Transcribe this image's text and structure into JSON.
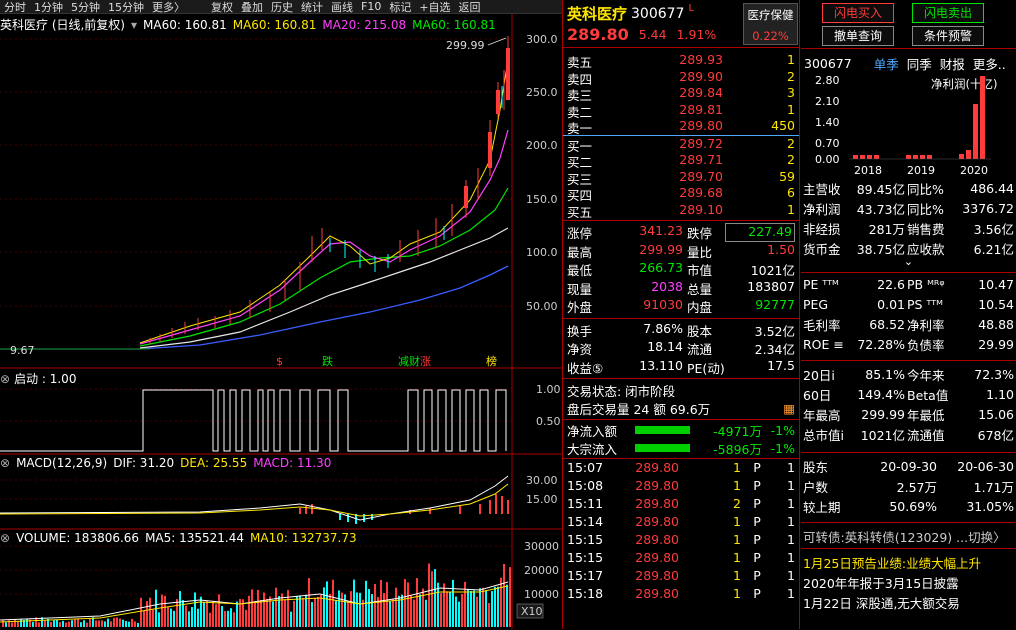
{
  "toolbar": {
    "items": [
      "分时",
      "1分钟",
      "5分钟",
      "15分钟",
      "更多〉",
      "复权",
      "叠加",
      "历史",
      "统计",
      "画线",
      "F10",
      "标记",
      "+自选",
      "返回"
    ]
  },
  "chart": {
    "title": "英科医疗 (日线,前复权)",
    "ma_legend": [
      {
        "label": "MA60: 160.81",
        "color": "#ffffff"
      },
      {
        "label": "MA60: 160.81",
        "color": "#ffe600"
      },
      {
        "label": "MA20: 215.08",
        "color": "#ff40ff"
      },
      {
        "label": "MA60: 160.81",
        "color": "#00e600"
      }
    ],
    "y_ticks": [
      "300.0",
      "250.0",
      "200.0",
      "150.0",
      "100.0",
      "50.00"
    ],
    "high_label": "299.99",
    "low_label": "9.67",
    "markers": [
      {
        "text": "$",
        "color": "#ff3b3b"
      },
      {
        "text": "跌",
        "color": "#00e600"
      },
      {
        "text": "减",
        "color": "#00e600"
      },
      {
        "text": "财",
        "color": "#00e600"
      },
      {
        "text": "涨",
        "color": "#ff3b3b"
      },
      {
        "text": "榜",
        "color": "#ffe600"
      }
    ],
    "signal": {
      "title": "启动 : 1.00",
      "ticks": [
        "1.00",
        "0.50"
      ]
    },
    "macd": {
      "label": "MACD(12,26,9)",
      "dif": "DIF: 31.20",
      "dea": "DEA: 25.55",
      "macd": "MACD: 11.30",
      "ticks": [
        "30.00",
        "15.00"
      ]
    },
    "volume": {
      "label": "VOLUME: 183806.66",
      "ma5": "MA5: 135521.44",
      "ma10": "MA10: 132737.73",
      "ticks": [
        "30000",
        "20000",
        "10000"
      ],
      "unit": "X10"
    }
  },
  "quote": {
    "name": "英科医疗",
    "code": "300677",
    "flag": "L",
    "price": "289.80",
    "change": "5.44",
    "pct": "1.91%",
    "sector": "医疗保健",
    "sector_pct": "0.22%",
    "asks": [
      {
        "label": "卖五",
        "price": "289.93",
        "vol": "1"
      },
      {
        "label": "卖四",
        "price": "289.90",
        "vol": "2"
      },
      {
        "label": "卖三",
        "price": "289.84",
        "vol": "3"
      },
      {
        "label": "卖二",
        "price": "289.81",
        "vol": "1"
      },
      {
        "label": "卖一",
        "price": "289.80",
        "vol": "450"
      }
    ],
    "bids": [
      {
        "label": "买一",
        "price": "289.72",
        "vol": "2"
      },
      {
        "label": "买二",
        "price": "289.71",
        "vol": "2"
      },
      {
        "label": "买三",
        "price": "289.70",
        "vol": "59"
      },
      {
        "label": "买四",
        "price": "289.68",
        "vol": "6"
      },
      {
        "label": "买五",
        "price": "289.10",
        "vol": "1"
      }
    ],
    "stats": {
      "zt_l": "涨停",
      "zt": "341.23",
      "dt_l": "跌停",
      "dt": "227.49",
      "hi_l": "最高",
      "hi": "299.99",
      "lb_l": "量比",
      "lb": "1.50",
      "lo_l": "最低",
      "lo": "266.73",
      "sz_l": "市值",
      "sz": "1021亿",
      "xl_l": "现量",
      "xl": "2038",
      "zl_l": "总量",
      "zl": "183807",
      "wp_l": "外盘",
      "wp": "91030",
      "np_l": "内盘",
      "np": "92777",
      "hs_l": "换手",
      "hs": "7.86%",
      "gb_l": "股本",
      "gb": "3.52亿",
      "jz_l": "净资",
      "jz": "18.14",
      "lt_l": "流通",
      "lt": "2.34亿",
      "sy_l": "收益⑤",
      "sy": "13.110",
      "pe_l": "PE(动)",
      "pe": "17.5"
    },
    "trade_status": "交易状态: 闭市阶段",
    "after_hours": "盘后交易量 24 额 69.6万",
    "net_inflow_label": "净流入额",
    "net_inflow": "-4971万",
    "net_inflow_pct": "-1%",
    "block_label": "大宗流入",
    "block": "-5896万",
    "block_pct": "-1%",
    "ticks": [
      {
        "t": "15:07",
        "p": "289.80",
        "v": "1",
        "s": "P",
        "n": "1"
      },
      {
        "t": "15:08",
        "p": "289.80",
        "v": "1",
        "s": "P",
        "n": "1"
      },
      {
        "t": "15:11",
        "p": "289.80",
        "v": "2",
        "s": "P",
        "n": "1"
      },
      {
        "t": "15:14",
        "p": "289.80",
        "v": "1",
        "s": "P",
        "n": "1"
      },
      {
        "t": "15:15",
        "p": "289.80",
        "v": "1",
        "s": "P",
        "n": "1"
      },
      {
        "t": "15:15",
        "p": "289.80",
        "v": "1",
        "s": "P",
        "n": "1"
      },
      {
        "t": "15:17",
        "p": "289.80",
        "v": "1",
        "s": "P",
        "n": "1"
      },
      {
        "t": "15:18",
        "p": "289.80",
        "v": "1",
        "s": "P",
        "n": "1"
      }
    ]
  },
  "right": {
    "btn_buy": "闪电买入",
    "btn_sell": "闪电卖出",
    "btn_cancel": "撤单查询",
    "btn_alert": "条件预警",
    "code": "300677",
    "tab_single": "单季",
    "tab_same": "同季",
    "tab_report": "财报",
    "tab_more": "更多..",
    "mini_title": "净利润(十亿)",
    "mini_y": [
      "2.80",
      "2.10",
      "1.40",
      "0.70",
      "0.00"
    ],
    "mini_x": [
      "2018",
      "2019",
      "2020"
    ],
    "fin": [
      {
        "a": "主营收",
        "b": "89.45亿",
        "c": "同比%",
        "d": "486.44"
      },
      {
        "a": "净利润",
        "b": "43.73亿",
        "c": "同比%",
        "d": "3376.72"
      },
      {
        "a": "非经损",
        "b": "281万",
        "c": "销售费",
        "d": "3.56亿"
      },
      {
        "a": "货币金",
        "b": "38.75亿",
        "c": "应收款",
        "d": "6.21亿"
      }
    ],
    "val": [
      {
        "a": "PE ᵀᵀᴹ",
        "b": "22.6",
        "c": "PB ᴹᴿᵠ",
        "d": "10.47"
      },
      {
        "a": "PEG",
        "b": "0.01",
        "c": "PS ᵀᵀᴹ",
        "d": "10.54"
      },
      {
        "a": "毛利率",
        "b": "68.52",
        "c": "净利率",
        "d": "48.88"
      },
      {
        "a": "ROE ≡",
        "b": "72.28%",
        "c": "负债率",
        "d": "29.99"
      }
    ],
    "perf": [
      {
        "a": "20日ⅰ",
        "b": "85.1%",
        "c": "今年来",
        "d": "72.3%"
      },
      {
        "a": "60日",
        "b": "149.4%",
        "c": "Beta值",
        "d": "1.10"
      },
      {
        "a": "年最高",
        "b": "299.99",
        "c": "年最低",
        "d": "15.06"
      },
      {
        "a": "总市值ⅰ",
        "b": "1021亿",
        "c": "流通值",
        "d": "678亿"
      }
    ],
    "holders": [
      {
        "a": "股东",
        "b": "20-09-30",
        "c": "20-06-30"
      },
      {
        "a": "户数",
        "b": "2.57万",
        "c": "1.71万"
      },
      {
        "a": "较上期",
        "b": "50.69%",
        "c": "31.05%"
      }
    ],
    "bond": "可转债:英科转债(123029) ...切换〉",
    "news": [
      "1月25日预告业绩:业绩大幅上升",
      "2020年年报于3月15日披露",
      "1月22日 深股通,无大额交易"
    ]
  }
}
